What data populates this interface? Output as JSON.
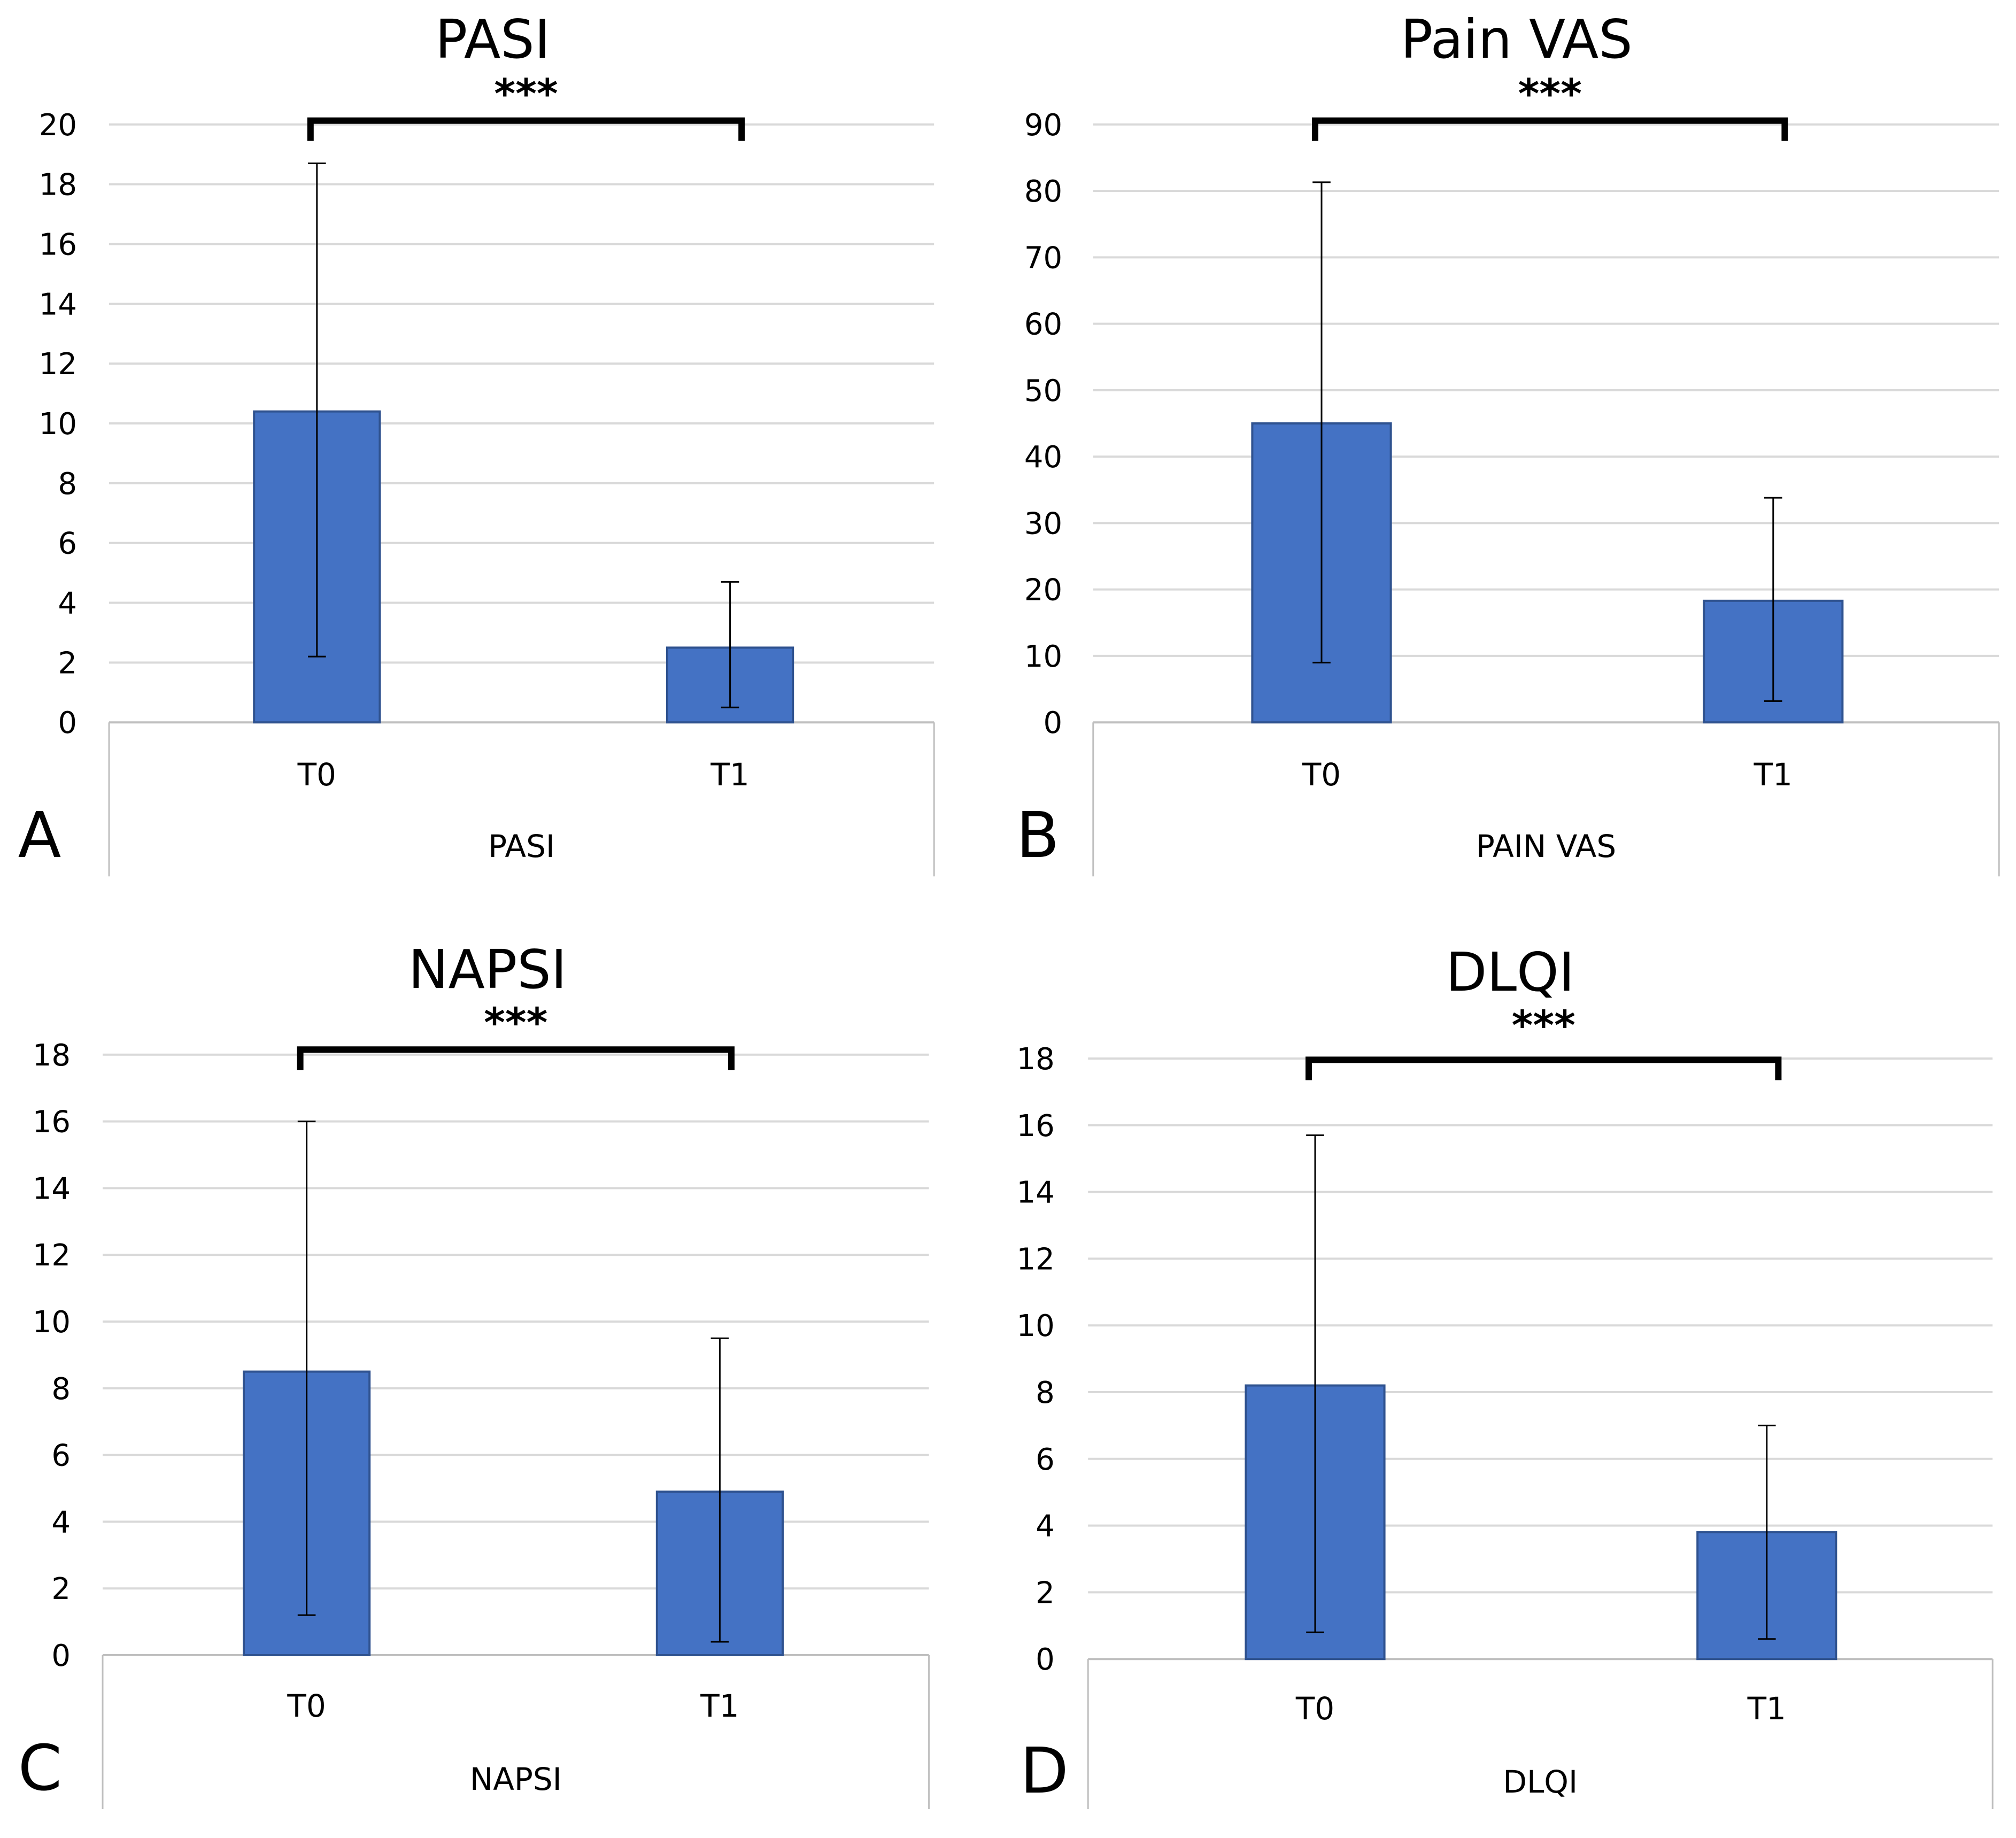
{
  "chart_data": [
    {
      "panel_label": "A",
      "type": "bar",
      "title": "PASI",
      "categories": [
        "T0",
        "T1"
      ],
      "values": [
        10.4,
        2.5
      ],
      "errors": [
        [
          2.2,
          18.7
        ],
        [
          0.5,
          4.7
        ]
      ],
      "xlabel": "PASI",
      "ylabel": "",
      "ylim": [
        0,
        20
      ],
      "yticks": [
        "0",
        "2",
        "4",
        "6",
        "8",
        "10",
        "12",
        "14",
        "16",
        "18",
        "20"
      ],
      "significance": "***",
      "grid": true
    },
    {
      "panel_label": "B",
      "type": "bar",
      "title": "Pain VAS",
      "categories": [
        "T0",
        "T1"
      ],
      "values": [
        45,
        18.3
      ],
      "errors": [
        [
          9,
          81.3
        ],
        [
          3.2,
          33.8
        ]
      ],
      "xlabel": "PAIN VAS",
      "ylabel": "",
      "ylim": [
        0,
        90
      ],
      "yticks": [
        "0",
        "10",
        "20",
        "30",
        "40",
        "50",
        "60",
        "70",
        "80",
        "90"
      ],
      "significance": "***",
      "grid": true
    },
    {
      "panel_label": "C",
      "type": "bar",
      "title": "NAPSI",
      "categories": [
        "T0",
        "T1"
      ],
      "values": [
        8.5,
        4.9
      ],
      "errors": [
        [
          1.2,
          16
        ],
        [
          0.4,
          9.5
        ]
      ],
      "xlabel": "NAPSI",
      "ylabel": "",
      "ylim": [
        0,
        18
      ],
      "yticks": [
        "0",
        "2",
        "4",
        "6",
        "8",
        "10",
        "12",
        "14",
        "16",
        "18"
      ],
      "significance": "***",
      "grid": true
    },
    {
      "panel_label": "D",
      "type": "bar",
      "title": "DLQI",
      "categories": [
        "T0",
        "T1"
      ],
      "values": [
        8.2,
        3.8
      ],
      "errors": [
        [
          0.8,
          15.7
        ],
        [
          0.6,
          7
        ]
      ],
      "xlabel": "DLQI",
      "ylabel": "",
      "ylim": [
        0,
        18
      ],
      "yticks": [
        "0",
        "2",
        "4",
        "6",
        "8",
        "10",
        "12",
        "14",
        "16",
        "18"
      ],
      "significance": "***",
      "grid": true
    }
  ],
  "colors": {
    "bar": "#4472C4",
    "bar_edge": "#2F528F",
    "grid": "#d9d9d9",
    "frame": "#bfbfbf",
    "text": "#000000"
  }
}
